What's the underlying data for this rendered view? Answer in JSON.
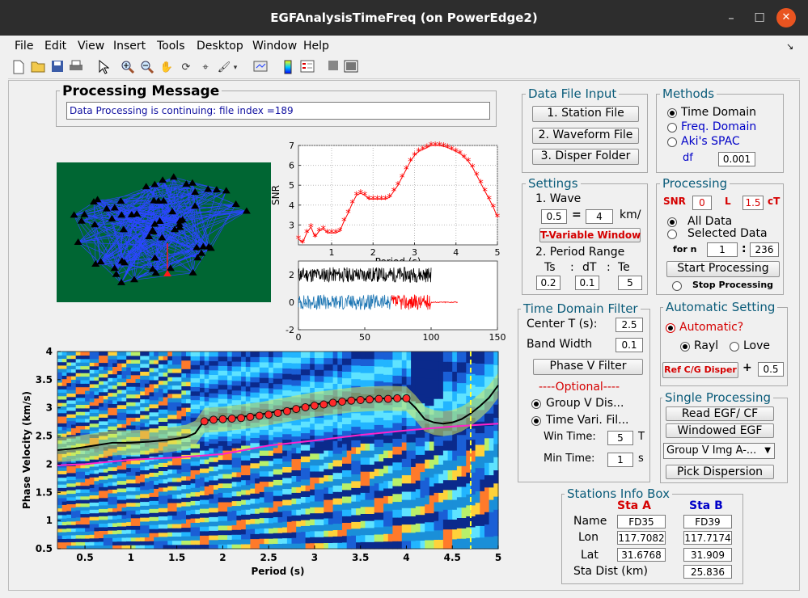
{
  "window": {
    "title": "EGFAnalysisTimeFreq (on PowerEdge2)",
    "minimize": "–",
    "maximize": "☐",
    "close": "✕"
  },
  "menu": [
    "File",
    "Edit",
    "View",
    "Insert",
    "Tools",
    "Desktop",
    "Window",
    "Help"
  ],
  "menu_arrow": "↘",
  "toolbar_icons": [
    "new-file-icon",
    "open-folder-icon",
    "save-icon",
    "print-icon",
    "pointer-icon",
    "zoom-in-icon",
    "zoom-out-icon",
    "pan-hand-icon",
    "rotate-3d-icon",
    "data-cursor-icon",
    "brush-icon",
    "dropdown-arrow-icon",
    "link-plot-icon",
    "colorbar-icon",
    "legend-icon",
    "hide-plot-tools-icon",
    "show-plot-tools-icon"
  ],
  "processing_message": {
    "title": "Processing Message",
    "text": "Data Processing is continuing: file index =189"
  },
  "data_file_input": {
    "title": "Data File Input",
    "station_btn": "1. Station  File",
    "waveform_btn": "2. Waveform File",
    "disper_btn": "3. Disper Folder"
  },
  "methods": {
    "title": "Methods",
    "time_domain": "Time Domain",
    "freq_domain": "Freq. Domain",
    "aki_spac": "Aki's SPAC",
    "df_label": "df",
    "df_value": "0.001",
    "selected": "time_domain"
  },
  "settings": {
    "title": "Settings",
    "wave_label": "1. Wave",
    "wave_a": "0.5",
    "equals": "=",
    "wave_b": "4",
    "unit": "km/",
    "t_variable_btn": "T-Variable Window",
    "period_range_label": "2. Period Range",
    "ts_label": "Ts",
    "colon1": ":",
    "dt_label": "dT",
    "colon2": ":",
    "te_label": "Te",
    "ts": "0.2",
    "dt": "0.1",
    "te": "5"
  },
  "processing": {
    "title": "Processing",
    "snr_label": "SNR",
    "snr": "0",
    "l_label": "L",
    "l_value": "1.5",
    "ct_label": "cT",
    "all_data": "All Data",
    "selected_data": "Selected Data",
    "selected": "all_data",
    "for_n": "for n",
    "n_from": "1",
    "n_colon": ":",
    "n_to": "236",
    "start_btn": "Start Processing",
    "stop_label": "Stop Processing"
  },
  "tdf": {
    "title": "Time Domain Filter",
    "center_label": "Center T (s):",
    "center_value": "2.5",
    "band_label": "Band Width",
    "band_value": "0.1",
    "phase_btn": "Phase V Filter",
    "optional": "----Optional----",
    "group_v": "Group V Dis...",
    "time_vari": "Time Vari. Fil...",
    "win_time_label": "Win Time:",
    "win_time": "5",
    "win_unit": "T",
    "min_time_label": "Min Time:",
    "min_time": "1",
    "min_unit": "s"
  },
  "auto": {
    "title": "Automatic Setting",
    "automatic": "Automatic?",
    "rayl": "Rayl",
    "love": "Love",
    "wave_selected": "rayl",
    "ref_btn": "Ref C/G Disper",
    "plus": "+",
    "ref_value": "0.5"
  },
  "single": {
    "title": "Single Processing",
    "read_btn": "Read EGF/ CF",
    "windowed_btn": "Windowed EGF",
    "select_value": "Group V Img A-...",
    "pick_btn": "Pick Dispersion"
  },
  "stations": {
    "title": "Stations Info Box",
    "sta_a": "Sta A",
    "sta_b": "Sta B",
    "name_label": "Name",
    "lon_label": "Lon",
    "lat_label": "Lat",
    "dist_label": "Sta Dist (km)",
    "name_a": "FD35",
    "name_b": "FD39",
    "lon_a": "117.7082",
    "lon_b": "117.7174",
    "lat_a": "31.6768",
    "lat_b": "31.909",
    "dist": "25.836"
  },
  "chart_data": [
    {
      "type": "scatter",
      "name": "station-map",
      "background": "#006633",
      "line_color": "#1f3fff",
      "marker": "black-triangle",
      "highlight_marker": "red-triangle"
    },
    {
      "type": "line",
      "ylabel": "SNR",
      "xlabel": "Period (s)",
      "xlim": [
        0.2,
        5
      ],
      "ylim": [
        2,
        7
      ],
      "xticks": [
        "1",
        "2",
        "3",
        "4",
        "5"
      ],
      "yticks": [
        "3",
        "4",
        "5",
        "6",
        "7"
      ],
      "grid": true,
      "marker": "*",
      "color": "#ff0000",
      "x": [
        0.2,
        0.3,
        0.4,
        0.5,
        0.6,
        0.7,
        0.8,
        0.9,
        1.0,
        1.1,
        1.2,
        1.3,
        1.4,
        1.5,
        1.6,
        1.7,
        1.8,
        1.9,
        2.0,
        2.1,
        2.2,
        2.3,
        2.4,
        2.5,
        2.6,
        2.7,
        2.8,
        2.9,
        3.0,
        3.1,
        3.2,
        3.3,
        3.4,
        3.5,
        3.6,
        3.7,
        3.8,
        3.9,
        4.0,
        4.1,
        4.2,
        4.3,
        4.4,
        4.5,
        4.6,
        4.7,
        4.8,
        4.9,
        5.0
      ],
      "y": [
        2.3,
        2.1,
        2.6,
        2.9,
        2.4,
        2.7,
        2.8,
        2.6,
        2.6,
        2.6,
        2.7,
        3.2,
        3.6,
        4.1,
        4.5,
        4.6,
        4.5,
        4.3,
        4.3,
        4.3,
        4.3,
        4.3,
        4.4,
        4.7,
        5.0,
        5.4,
        5.8,
        6.2,
        6.5,
        6.7,
        6.8,
        6.9,
        7.0,
        7.0,
        7.0,
        6.95,
        6.9,
        6.8,
        6.7,
        6.6,
        6.4,
        6.2,
        5.9,
        5.5,
        5.1,
        4.7,
        4.3,
        3.9,
        3.4
      ]
    },
    {
      "type": "line",
      "name": "waveforms",
      "xlim": [
        0,
        150
      ],
      "ylim": [
        -2,
        3
      ],
      "xticks": [
        "0",
        "50",
        "100",
        "150"
      ],
      "yticks": [
        "-2",
        "0",
        "2"
      ],
      "series": [
        {
          "color": "#000000",
          "offset": 2,
          "x_range": [
            0,
            100
          ]
        },
        {
          "color": "#1f77b4",
          "offset": 0,
          "x_range": [
            0,
            70
          ]
        },
        {
          "color": "#ff0000",
          "offset": 0,
          "x_range": [
            70,
            120
          ]
        }
      ]
    },
    {
      "type": "heatmap",
      "xlabel": "Period (s)",
      "ylabel": "Phase Velocity (km/s)",
      "xlim": [
        0.2,
        5
      ],
      "ylim": [
        0.5,
        4
      ],
      "xticks": [
        "0.5",
        "1",
        "1.5",
        "2",
        "2.5",
        "3",
        "3.5",
        "4",
        "4.5",
        "5"
      ],
      "yticks": [
        "0.5",
        "1",
        "1.5",
        "2",
        "2.5",
        "3",
        "3.5",
        "4"
      ],
      "black_curve": {
        "x": [
          0.2,
          0.4,
          0.6,
          0.8,
          1.0,
          1.2,
          1.4,
          1.6,
          1.7,
          1.8,
          2.0,
          2.2,
          2.4,
          2.6,
          2.8,
          3.0,
          3.2,
          3.4,
          3.6,
          3.8,
          4.0,
          4.1,
          4.2,
          4.3,
          4.4,
          4.5,
          4.6,
          4.7,
          4.8,
          4.9,
          5.0
        ],
        "y": [
          2.25,
          2.28,
          2.33,
          2.38,
          2.38,
          2.4,
          2.43,
          2.48,
          2.55,
          2.78,
          2.8,
          2.84,
          2.88,
          2.94,
          3.0,
          3.06,
          3.1,
          3.14,
          3.16,
          3.17,
          3.16,
          3.0,
          2.8,
          2.74,
          2.72,
          2.74,
          2.8,
          2.9,
          3.03,
          3.18,
          3.4
        ]
      },
      "magenta_curve": {
        "x": [
          0.2,
          0.5,
          1.0,
          1.5,
          2.0,
          2.5,
          3.0,
          3.5,
          4.0,
          4.5,
          5.0
        ],
        "y": [
          1.98,
          2.0,
          2.08,
          2.12,
          2.18,
          2.33,
          2.42,
          2.52,
          2.6,
          2.67,
          2.72
        ]
      },
      "picks": {
        "x": [
          1.8,
          1.9,
          2.0,
          2.1,
          2.2,
          2.3,
          2.4,
          2.5,
          2.6,
          2.7,
          2.8,
          2.9,
          3.0,
          3.1,
          3.2,
          3.3,
          3.4,
          3.5,
          3.6,
          3.7,
          3.8,
          3.9,
          4.0
        ],
        "y": [
          2.76,
          2.79,
          2.8,
          2.81,
          2.82,
          2.84,
          2.86,
          2.88,
          2.91,
          2.94,
          2.98,
          3.01,
          3.04,
          3.06,
          3.09,
          3.11,
          3.13,
          3.14,
          3.15,
          3.16,
          3.16,
          3.17,
          3.17
        ]
      },
      "marker_line_x": 4.7
    }
  ]
}
